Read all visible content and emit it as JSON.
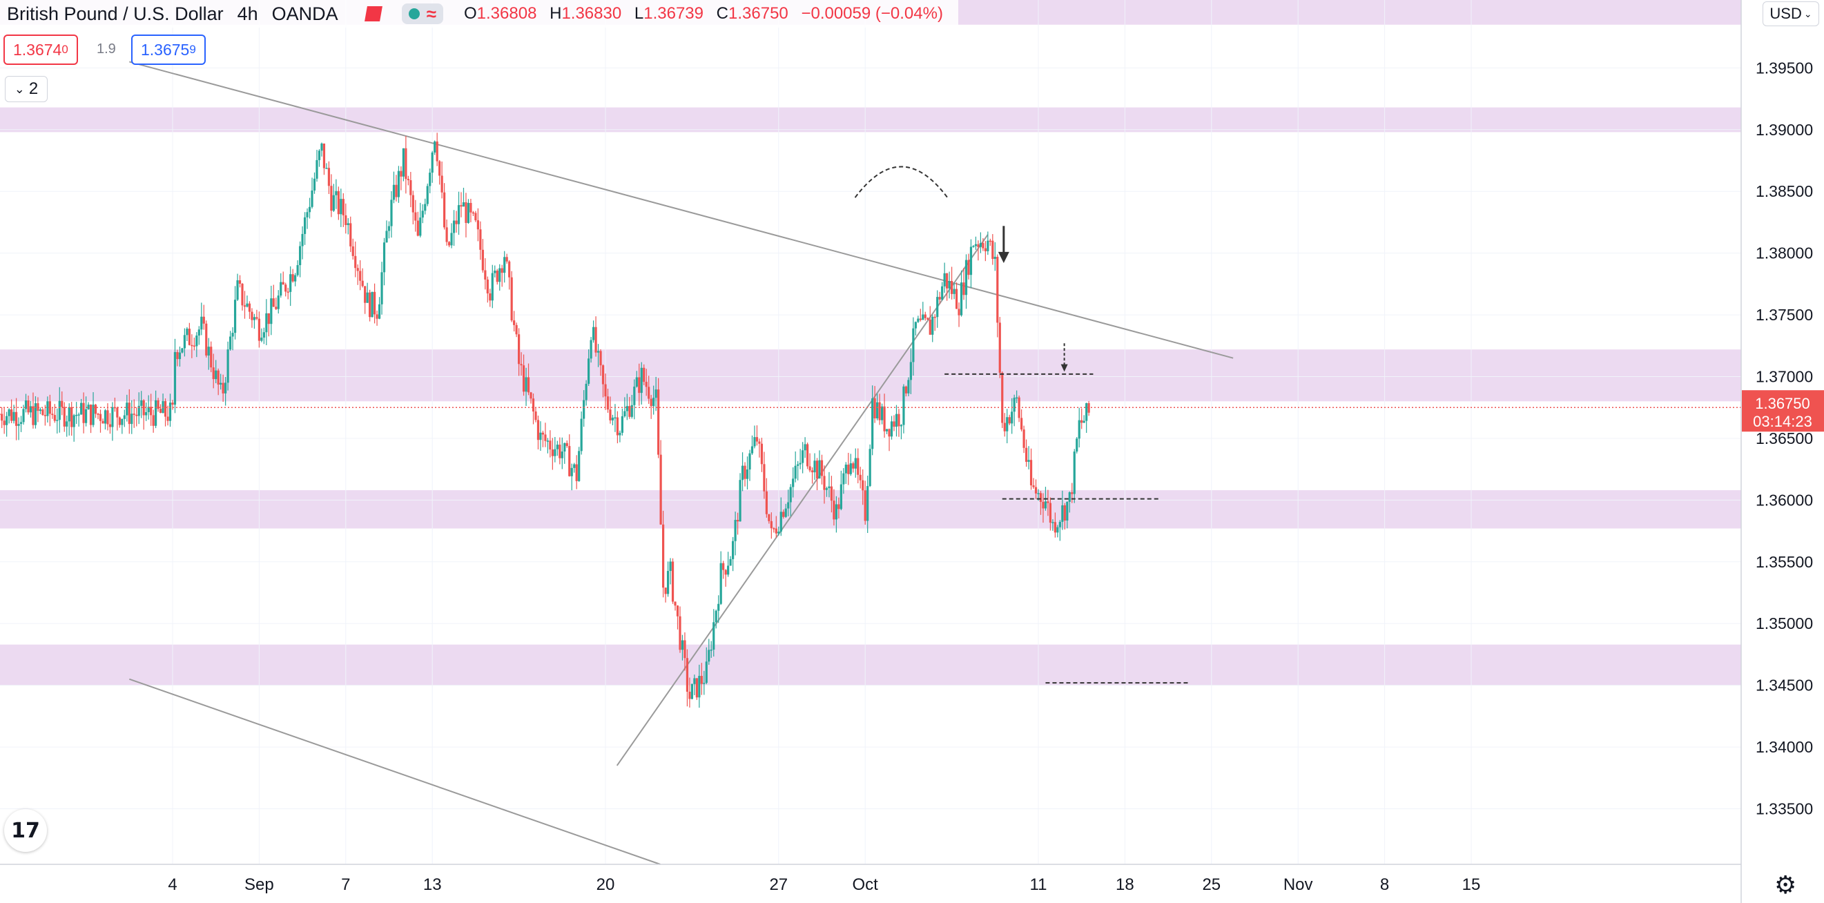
{
  "header": {
    "symbol": "British Pound / U.S. Dollar",
    "interval": "4h",
    "broker": "OANDA",
    "indicator_glyph": "≈",
    "ohlc": {
      "o_label": "O",
      "o": "1.36808",
      "h_label": "H",
      "h": "1.36830",
      "l_label": "L",
      "l": "1.36739",
      "c_label": "C",
      "c": "1.36750",
      "change": "−0.00059 (−0.04%)"
    }
  },
  "trade": {
    "sell_main": "1.3674",
    "sell_sup": "0",
    "spread": "1.9",
    "buy_main": "1.3675",
    "buy_sup": "9"
  },
  "collapse_label": "2",
  "currency": "USD",
  "logo": "17",
  "colors": {
    "up": "#26a69a",
    "down": "#ef5350",
    "zone": "#e9d4ef",
    "trendline": "#9a9a9a",
    "price_line": "#ef5350",
    "axis_text": "#131722"
  },
  "chart_data": {
    "type": "candlestick",
    "symbol": "GBPUSD",
    "timeframe": "4h",
    "ylim": [
      1.3305,
      1.4005
    ],
    "y_ticks": [
      "1.39500",
      "1.39000",
      "1.38500",
      "1.38000",
      "1.37500",
      "1.37000",
      "1.36500",
      "1.36000",
      "1.35500",
      "1.35000",
      "1.34500",
      "1.34000",
      "1.33500"
    ],
    "x_ticks": [
      {
        "label": "4",
        "day": 0
      },
      {
        "label": "Sep",
        "day": 6
      },
      {
        "label": "7",
        "day": 12
      },
      {
        "label": "13",
        "day": 18
      },
      {
        "label": "20",
        "day": 30
      },
      {
        "label": "27",
        "day": 42
      },
      {
        "label": "Oct",
        "day": 48
      },
      {
        "label": "11",
        "day": 60
      },
      {
        "label": "18",
        "day": 66
      },
      {
        "label": "25",
        "day": 72
      },
      {
        "label": "Nov",
        "day": 78
      },
      {
        "label": "8",
        "day": 84
      },
      {
        "label": "15",
        "day": 90
      }
    ],
    "last_price": "1.36750",
    "countdown": "03:14:23",
    "price_path": [
      [
        0,
        1.372
      ],
      [
        2,
        1.374
      ],
      [
        3.4,
        1.3682
      ],
      [
        4.5,
        1.377
      ],
      [
        6,
        1.374
      ],
      [
        7,
        1.3755
      ],
      [
        8.5,
        1.379
      ],
      [
        10.3,
        1.3885
      ],
      [
        11,
        1.3845
      ],
      [
        12,
        1.383
      ],
      [
        13.5,
        1.376
      ],
      [
        14.2,
        1.3755
      ],
      [
        15,
        1.383
      ],
      [
        16,
        1.3875
      ],
      [
        17,
        1.381
      ],
      [
        18.2,
        1.39
      ],
      [
        19,
        1.38
      ],
      [
        20,
        1.384
      ],
      [
        21,
        1.382
      ],
      [
        22,
        1.377
      ],
      [
        23,
        1.38
      ],
      [
        24,
        1.371
      ],
      [
        25.5,
        1.365
      ],
      [
        27,
        1.364
      ],
      [
        28,
        1.362
      ],
      [
        29,
        1.374
      ],
      [
        30,
        1.368
      ],
      [
        31,
        1.366
      ],
      [
        32.5,
        1.37
      ],
      [
        33.5,
        1.368
      ],
      [
        34,
        1.353
      ],
      [
        34.5,
        1.354
      ],
      [
        35.8,
        1.344
      ],
      [
        37,
        1.346
      ],
      [
        38,
        1.354
      ],
      [
        38.8,
        1.356
      ],
      [
        39.5,
        1.362
      ],
      [
        40.5,
        1.365
      ],
      [
        41.5,
        1.357
      ],
      [
        42.5,
        1.36
      ],
      [
        43.8,
        1.364
      ],
      [
        45,
        1.362
      ],
      [
        46,
        1.359
      ],
      [
        47,
        1.364
      ],
      [
        48,
        1.359
      ],
      [
        48.5,
        1.368
      ],
      [
        49.5,
        1.366
      ],
      [
        50.5,
        1.367
      ],
      [
        51.5,
        1.374
      ],
      [
        52.5,
        1.374
      ],
      [
        53.5,
        1.378
      ],
      [
        54.5,
        1.376
      ],
      [
        55.5,
        1.381
      ],
      [
        56.5,
        1.381
      ],
      [
        57,
        1.379
      ],
      [
        57.5,
        1.366
      ],
      [
        58.5,
        1.368
      ],
      [
        59.5,
        1.361
      ],
      [
        60.5,
        1.36
      ],
      [
        61,
        1.358
      ],
      [
        62.2,
        1.36
      ],
      [
        62.8,
        1.366
      ],
      [
        63.5,
        1.367
      ]
    ],
    "zones": [
      {
        "low": 1.3985,
        "high": 1.4005
      },
      {
        "low": 1.3898,
        "high": 1.3918
      },
      {
        "low": 1.368,
        "high": 1.3722
      },
      {
        "low": 1.3577,
        "high": 1.3608
      },
      {
        "low": 1.345,
        "high": 1.3483
      }
    ],
    "trendlines": [
      {
        "from": [
          -3,
          1.3955
        ],
        "to": [
          73.5,
          1.3715
        ]
      },
      {
        "from": [
          -3,
          1.3455
        ],
        "to": [
          33.8,
          1.3305
        ]
      },
      {
        "from": [
          30.8,
          1.3385
        ],
        "to": [
          56.5,
          1.3815
        ]
      }
    ],
    "levels": [
      {
        "price": 1.3702,
        "from": 53.5,
        "to": 63.8
      },
      {
        "price": 1.3601,
        "from": 57.5,
        "to": 68.5
      },
      {
        "price": 1.3452,
        "from": 60.5,
        "to": 70.5
      }
    ]
  }
}
